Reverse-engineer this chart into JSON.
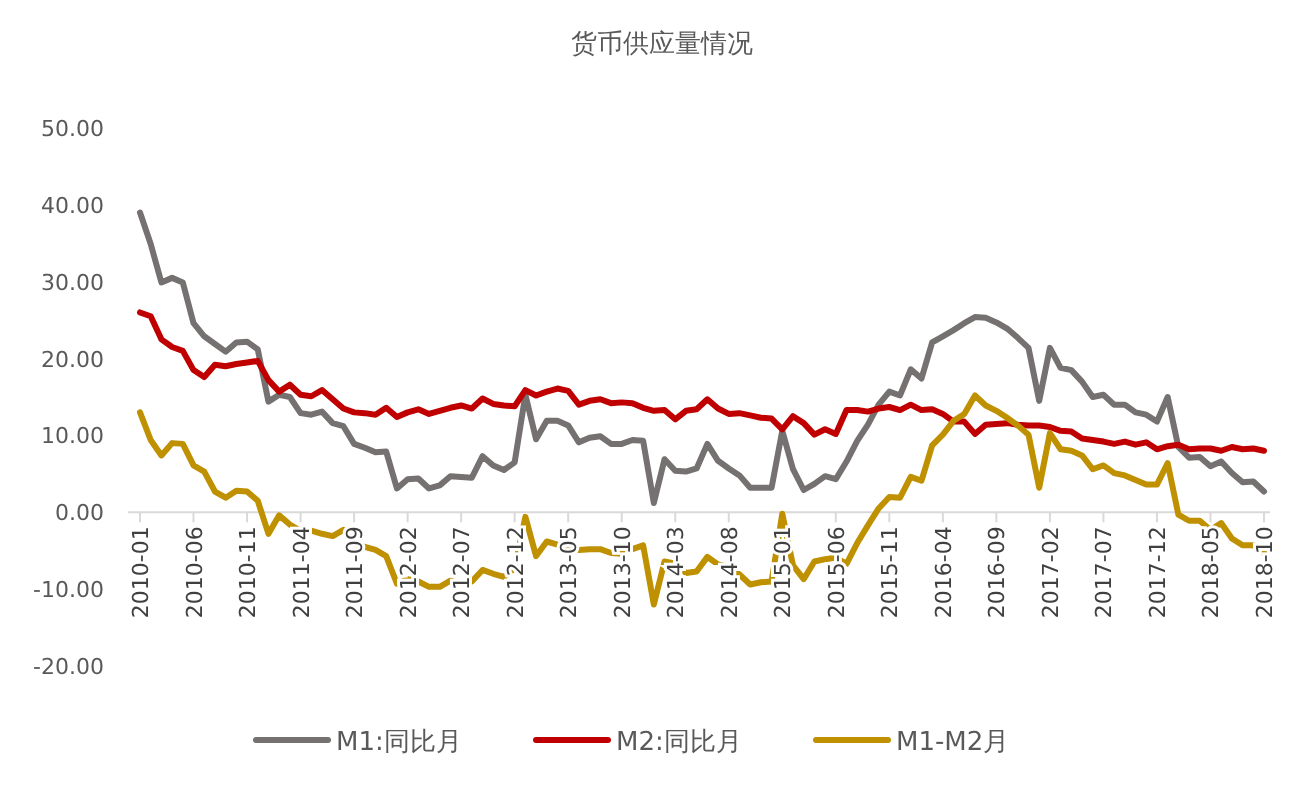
{
  "chart_data": {
    "type": "line",
    "title": "货币供应量情况",
    "categories": [
      "2010-01",
      null,
      null,
      null,
      null,
      "2010-06",
      null,
      null,
      null,
      null,
      "2010-11",
      null,
      null,
      null,
      null,
      "2011-04",
      null,
      null,
      null,
      null,
      "2011-09",
      null,
      null,
      null,
      null,
      "2012-02",
      null,
      null,
      null,
      null,
      "2012-07",
      null,
      null,
      null,
      null,
      "2012-12",
      null,
      null,
      null,
      null,
      "2013-05",
      null,
      null,
      null,
      null,
      "2013-10",
      null,
      null,
      null,
      null,
      "2014-03",
      null,
      null,
      null,
      null,
      "2014-08",
      null,
      null,
      null,
      null,
      "2015-01",
      null,
      null,
      null,
      null,
      "2015-06",
      null,
      null,
      null,
      null,
      "2015-11",
      null,
      null,
      null,
      null,
      "2016-04",
      null,
      null,
      null,
      null,
      "2016-09",
      null,
      null,
      null,
      null,
      "2017-02",
      null,
      null,
      null,
      null,
      "2017-07",
      null,
      null,
      null,
      null,
      "2017-12",
      null,
      null,
      null,
      null,
      "2018-05",
      null,
      null,
      null,
      null,
      "2018-10"
    ],
    "series": [
      {
        "name": "M1:同比月",
        "color": "#767171",
        "values": [
          39.0,
          34.9,
          29.9,
          30.5,
          29.9,
          24.6,
          22.9,
          21.9,
          20.9,
          22.1,
          22.2,
          21.2,
          14.4,
          15.3,
          15.0,
          12.9,
          12.7,
          13.1,
          11.6,
          11.2,
          8.9,
          8.4,
          7.8,
          7.9,
          3.1,
          4.3,
          4.4,
          3.1,
          3.5,
          4.7,
          4.6,
          4.5,
          7.3,
          6.1,
          5.5,
          6.5,
          15.3,
          9.5,
          11.9,
          11.9,
          11.3,
          9.1,
          9.7,
          9.9,
          8.9,
          8.9,
          9.4,
          9.3,
          1.2,
          6.9,
          5.4,
          5.3,
          5.7,
          8.9,
          6.7,
          5.7,
          4.8,
          3.2,
          3.2,
          3.2,
          10.6,
          5.6,
          2.9,
          3.7,
          4.7,
          4.3,
          6.6,
          9.3,
          11.4,
          14.0,
          15.7,
          15.2,
          18.6,
          17.4,
          22.1,
          22.9,
          23.7,
          24.6,
          25.4,
          25.3,
          24.7,
          23.9,
          22.7,
          21.4,
          14.5,
          21.4,
          18.8,
          18.5,
          17.0,
          15.0,
          15.3,
          14.0,
          14.0,
          13.0,
          12.7,
          11.8,
          15.0,
          8.5,
          7.1,
          7.2,
          6.0,
          6.6,
          5.1,
          3.9,
          4.0,
          2.7
        ]
      },
      {
        "name": "M2:同比月",
        "color": "#c00000",
        "values": [
          26.0,
          25.5,
          22.5,
          21.5,
          21.0,
          18.5,
          17.6,
          19.2,
          19.0,
          19.3,
          19.5,
          19.7,
          17.2,
          15.7,
          16.6,
          15.3,
          15.1,
          15.9,
          14.7,
          13.5,
          13.0,
          12.9,
          12.7,
          13.6,
          12.4,
          13.0,
          13.4,
          12.8,
          13.2,
          13.6,
          13.9,
          13.5,
          14.8,
          14.1,
          13.9,
          13.8,
          15.9,
          15.2,
          15.7,
          16.1,
          15.8,
          14.0,
          14.5,
          14.7,
          14.2,
          14.3,
          14.2,
          13.6,
          13.2,
          13.3,
          12.1,
          13.2,
          13.4,
          14.7,
          13.5,
          12.8,
          12.9,
          12.6,
          12.3,
          12.2,
          10.8,
          12.5,
          11.6,
          10.1,
          10.8,
          10.2,
          13.3,
          13.3,
          13.1,
          13.5,
          13.7,
          13.3,
          14.0,
          13.3,
          13.4,
          12.8,
          11.8,
          11.8,
          10.2,
          11.4,
          11.5,
          11.6,
          11.4,
          11.3,
          11.3,
          11.1,
          10.6,
          10.5,
          9.6,
          9.4,
          9.2,
          8.9,
          9.2,
          8.8,
          9.1,
          8.2,
          8.6,
          8.8,
          8.2,
          8.3,
          8.3,
          8.0,
          8.5,
          8.2,
          8.3,
          8.0
        ]
      },
      {
        "name": "M1-M2月",
        "color": "#bf9000",
        "values": [
          13.0,
          9.4,
          7.4,
          9.0,
          8.9,
          6.1,
          5.3,
          2.7,
          1.9,
          2.8,
          2.7,
          1.5,
          -2.8,
          -0.4,
          -1.6,
          -2.4,
          -2.4,
          -2.8,
          -3.1,
          -2.3,
          -4.1,
          -4.5,
          -4.9,
          -5.7,
          -9.3,
          -8.7,
          -9.0,
          -9.7,
          -9.7,
          -8.9,
          -9.3,
          -9.0,
          -7.5,
          -8.0,
          -8.4,
          -7.3,
          -0.6,
          -5.7,
          -3.8,
          -4.2,
          -4.5,
          -4.9,
          -4.8,
          -4.8,
          -5.3,
          -5.4,
          -4.8,
          -4.3,
          -12.0,
          -6.4,
          -6.7,
          -7.9,
          -7.7,
          -5.8,
          -6.8,
          -7.1,
          -8.1,
          -9.4,
          -9.1,
          -9.0,
          -0.2,
          -6.9,
          -8.7,
          -6.4,
          -6.1,
          -5.9,
          -6.7,
          -4.0,
          -1.7,
          0.5,
          2.0,
          1.9,
          4.6,
          4.1,
          8.7,
          10.1,
          11.9,
          12.8,
          15.2,
          13.9,
          13.2,
          12.3,
          11.3,
          10.1,
          3.2,
          10.3,
          8.2,
          8.0,
          7.4,
          5.6,
          6.1,
          5.1,
          4.8,
          4.2,
          3.6,
          3.6,
          6.4,
          -0.3,
          -1.1,
          -1.1,
          -2.3,
          -1.4,
          -3.4,
          -4.3,
          -4.3,
          -5.3
        ]
      }
    ],
    "ylim": [
      -20,
      50
    ],
    "yticks": [
      {
        "value": -20,
        "label": "-20.00"
      },
      {
        "value": -10,
        "label": "-10.00"
      },
      {
        "value": 0,
        "label": "0.00"
      },
      {
        "value": 10,
        "label": "10.00"
      },
      {
        "value": 20,
        "label": "20.00"
      },
      {
        "value": 30,
        "label": "30.00"
      },
      {
        "value": 40,
        "label": "40.00"
      },
      {
        "value": 50,
        "label": "50.00"
      }
    ],
    "grid": false,
    "legend": "bottom",
    "marker": "none",
    "line_style": "solid"
  }
}
